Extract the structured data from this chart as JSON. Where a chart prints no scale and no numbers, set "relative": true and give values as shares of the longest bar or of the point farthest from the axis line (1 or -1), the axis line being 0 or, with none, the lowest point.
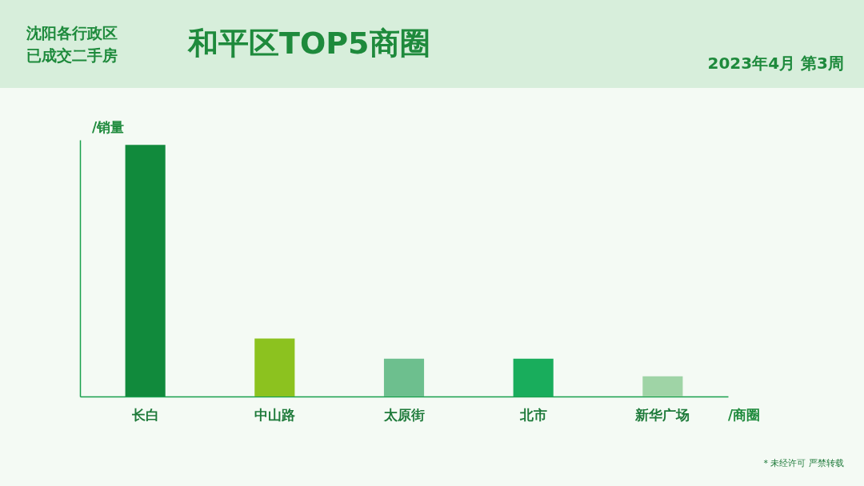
{
  "chart_data": {
    "type": "bar",
    "title": "和平区TOP5商圈",
    "subtitle": "2023年4月 第3周",
    "xlabel": "/商圈",
    "ylabel": "/销量",
    "categories": [
      "长白",
      "中山路",
      "太原街",
      "北市",
      "新华广场"
    ],
    "values": [
      1,
      0.23,
      0.15,
      0.15,
      0.08
    ],
    "colors": [
      "#118a3c",
      "#8cc21f",
      "#6dbf8e",
      "#19ad5c",
      "#9fd4a6"
    ],
    "relative": true,
    "annotations": [
      "沈阳各行政区",
      "已成交二手房",
      "* 未经许可 严禁转载"
    ]
  }
}
